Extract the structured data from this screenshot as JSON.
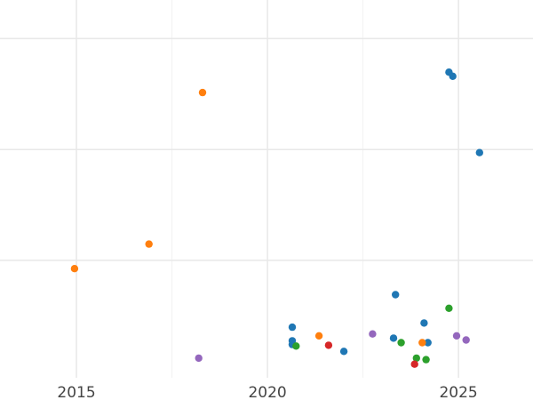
{
  "chart_data": {
    "type": "scatter",
    "title": "",
    "xlabel": "",
    "ylabel": "",
    "xlim": [
      2013.0,
      2026.95
    ],
    "ylim": [
      0,
      1
    ],
    "x_ticks": [
      {
        "value": 2015,
        "label": "2015"
      },
      {
        "value": 2020,
        "label": "2020"
      },
      {
        "value": 2025,
        "label": "2025"
      }
    ],
    "x_minor_gridlines": [
      2017.5,
      2022.5
    ],
    "y_gridlines": [
      0.311,
      0.604,
      0.898
    ],
    "grid": true,
    "legend": "none",
    "series": [
      {
        "color": "#1f77b4",
        "points": [
          {
            "x": 2024.75,
            "y": 0.809
          },
          {
            "x": 2024.85,
            "y": 0.798
          },
          {
            "x": 2025.55,
            "y": 0.596
          },
          {
            "x": 2023.35,
            "y": 0.22
          },
          {
            "x": 2020.65,
            "y": 0.134
          },
          {
            "x": 2024.1,
            "y": 0.145
          },
          {
            "x": 2020.65,
            "y": 0.098
          },
          {
            "x": 2020.65,
            "y": 0.088
          },
          {
            "x": 2023.3,
            "y": 0.105
          },
          {
            "x": 2024.2,
            "y": 0.093
          },
          {
            "x": 2022.0,
            "y": 0.07
          }
        ]
      },
      {
        "color": "#ff7f0e",
        "points": [
          {
            "x": 2018.3,
            "y": 0.755
          },
          {
            "x": 2016.9,
            "y": 0.354
          },
          {
            "x": 2014.95,
            "y": 0.289
          },
          {
            "x": 2021.35,
            "y": 0.111
          },
          {
            "x": 2024.05,
            "y": 0.093
          }
        ]
      },
      {
        "color": "#2ca02c",
        "points": [
          {
            "x": 2024.75,
            "y": 0.184
          },
          {
            "x": 2020.75,
            "y": 0.084
          },
          {
            "x": 2023.5,
            "y": 0.093
          },
          {
            "x": 2023.9,
            "y": 0.052
          },
          {
            "x": 2024.15,
            "y": 0.048
          }
        ]
      },
      {
        "color": "#d62728",
        "points": [
          {
            "x": 2021.6,
            "y": 0.086
          },
          {
            "x": 2023.85,
            "y": 0.036
          }
        ]
      },
      {
        "color": "#9467bd",
        "points": [
          {
            "x": 2018.2,
            "y": 0.052
          },
          {
            "x": 2022.75,
            "y": 0.116
          },
          {
            "x": 2024.95,
            "y": 0.111
          },
          {
            "x": 2025.2,
            "y": 0.1
          }
        ]
      }
    ]
  }
}
